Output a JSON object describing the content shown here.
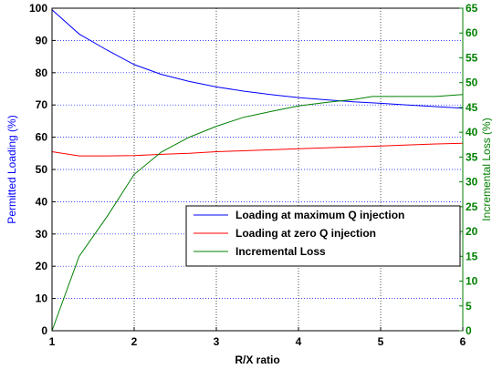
{
  "chart_data": {
    "type": "line",
    "xlabel": "R/X ratio",
    "ylabel_left": "Permitted Loading (%)",
    "ylabel_right": "Incremental Loss (%)",
    "xlim": [
      1,
      6
    ],
    "ylim_left": [
      0,
      100
    ],
    "ylim_right": [
      0,
      65
    ],
    "x_ticks": [
      1,
      2,
      3,
      4,
      5,
      6
    ],
    "y_left_ticks": [
      0,
      10,
      20,
      30,
      40,
      50,
      60,
      70,
      80,
      90,
      100
    ],
    "y_right_ticks": [
      0,
      5,
      10,
      15,
      20,
      25,
      30,
      35,
      40,
      45,
      50,
      55,
      60,
      65
    ],
    "grid": true,
    "legend_position": "lower-right",
    "colors": {
      "left_axis": "#0000ff",
      "right_axis": "#008000",
      "grid": "#0000ff"
    },
    "series": [
      {
        "name": "Loading at maximum Q injection",
        "axis": "left",
        "color": "#0000ff",
        "x": [
          1,
          1.33,
          1.67,
          2,
          2.33,
          2.67,
          3,
          3.33,
          3.67,
          4,
          4.33,
          4.67,
          5,
          5.33,
          5.67,
          6
        ],
        "y": [
          99.5,
          92,
          87,
          82.5,
          79.5,
          77.3,
          75.6,
          74.3,
          73.2,
          72.3,
          71.6,
          71,
          70.5,
          70,
          69.5,
          69
        ]
      },
      {
        "name": "Loading at zero Q injection",
        "axis": "left",
        "color": "#ff0000",
        "x": [
          1,
          1.33,
          1.67,
          2,
          2.33,
          2.67,
          3,
          3.33,
          3.67,
          4,
          4.33,
          4.67,
          5,
          5.33,
          5.67,
          6
        ],
        "y": [
          55.5,
          54.2,
          54.2,
          54.3,
          54.7,
          55,
          55.5,
          55.8,
          56.1,
          56.4,
          56.7,
          57,
          57.3,
          57.6,
          57.9,
          58.1
        ]
      },
      {
        "name": "Incremental Loss",
        "axis": "right",
        "color": "#008000",
        "x": [
          1,
          1.33,
          1.67,
          2,
          2.33,
          2.67,
          3,
          3.33,
          3.67,
          4,
          4.33,
          4.67,
          4.9,
          5.33,
          5.67,
          6
        ],
        "y": [
          0,
          15,
          23,
          31.5,
          36,
          39,
          41.2,
          43,
          44.2,
          45.3,
          46,
          46.6,
          47.2,
          47.2,
          47.2,
          47.6
        ]
      }
    ]
  }
}
